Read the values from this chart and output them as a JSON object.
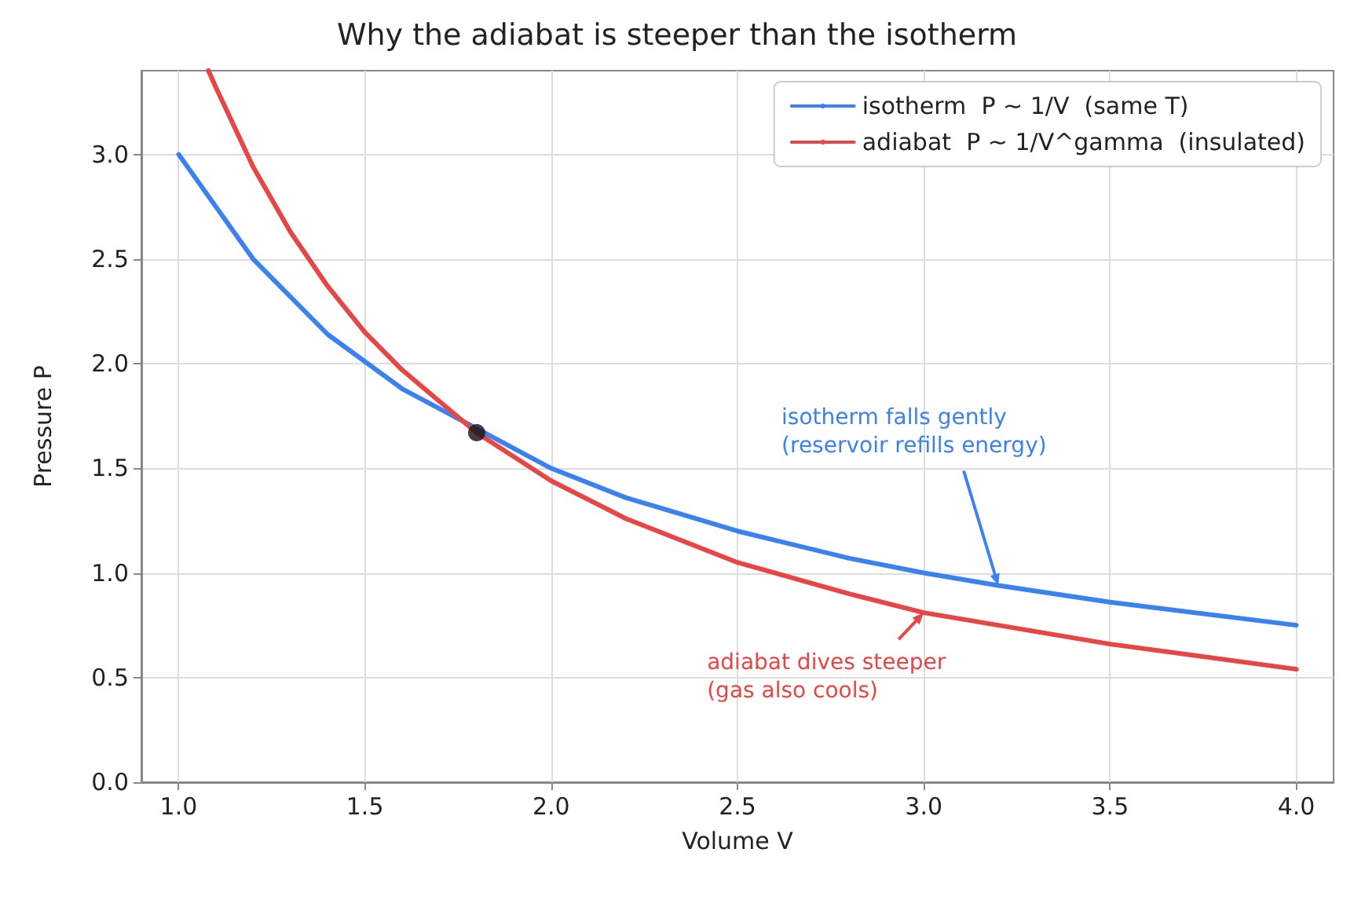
{
  "chart_data": {
    "type": "line",
    "title": "Why the adiabat is steeper than the isotherm",
    "xlabel": "Volume V",
    "ylabel": "Pressure P",
    "series": [
      {
        "name": "isotherm  P ~ 1/V  (same T)",
        "color": "#3b82f0",
        "x": [
          1.0,
          1.2,
          1.4,
          1.6,
          2.0,
          2.2,
          2.5,
          2.8,
          3.0,
          3.2,
          3.5,
          4.0
        ],
        "values": [
          3.0,
          2.5,
          2.14,
          1.88,
          1.5,
          1.36,
          1.2,
          1.07,
          1.0,
          0.94,
          0.86,
          0.75
        ]
      },
      {
        "name": "adiabat  P ~ 1/V^gamma  (insulated)",
        "color": "#e84545",
        "x": [
          1.08,
          1.1,
          1.2,
          1.3,
          1.4,
          1.5,
          1.6,
          1.8,
          2.0,
          2.2,
          2.5,
          2.8,
          3.0,
          3.2,
          3.5,
          4.0
        ],
        "values": [
          3.4,
          3.32,
          2.94,
          2.63,
          2.37,
          2.15,
          1.97,
          1.67,
          1.44,
          1.26,
          1.05,
          0.9,
          0.81,
          0.75,
          0.66,
          0.54
        ]
      },
      {
        "type": "scatter",
        "marker": "circle",
        "color": "#111111",
        "x": [
          1.8
        ],
        "values": [
          1.67
        ]
      }
    ],
    "annotations": [
      {
        "text": "isotherm falls gently\n(reservoir refills energy)",
        "x": 3.2,
        "y": 0.94
      },
      {
        "text": "adiabat dives steeper\n(gas also cools)",
        "x": 3.0,
        "y": 0.81
      }
    ],
    "xlim": [
      0.9,
      4.1
    ],
    "xticks": [
      {
        "value": 1,
        "label": "1.0"
      },
      1.5,
      {
        "value": 2,
        "label": "2.0"
      },
      2.5,
      {
        "value": 3,
        "label": "3.0"
      },
      3.5,
      {
        "value": 4,
        "label": "4.0"
      }
    ],
    "ylim": [
      0,
      3.4
    ],
    "yticks": [
      {
        "value": 0,
        "label": "0.0"
      },
      0.5,
      {
        "value": 1,
        "label": "1.0"
      },
      1.5,
      {
        "value": 2,
        "label": "2.0"
      },
      2.5,
      {
        "value": 3,
        "label": "3.0"
      }
    ],
    "grid": true,
    "legend": "top right",
    "marker": "none",
    "line_style": "solid"
  }
}
